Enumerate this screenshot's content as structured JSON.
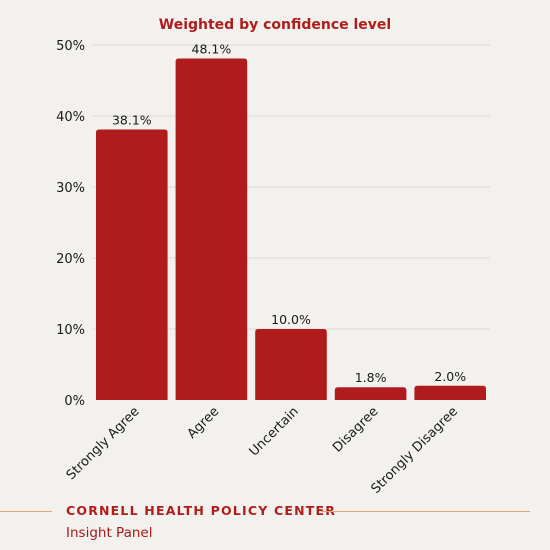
{
  "chart_data": {
    "type": "bar",
    "title": "Weighted by confidence level",
    "categories": [
      "Strongly Agree",
      "Agree",
      "Uncertain",
      "Disagree",
      "Strongly Disagree"
    ],
    "values": [
      38.1,
      48.1,
      10.0,
      1.8,
      2.0
    ],
    "data_labels": [
      "38.1%",
      "48.1%",
      "10.0%",
      "1.8%",
      "2.0%"
    ],
    "yticks": [
      0,
      10,
      20,
      30,
      40,
      50
    ],
    "ytick_labels": [
      "0%",
      "10%",
      "20%",
      "30%",
      "40%",
      "50%"
    ],
    "ylim": [
      0,
      50
    ],
    "grid": true,
    "legend": "none",
    "colors": {
      "bar": "#b01c1c",
      "title": "#b01c1c",
      "grid": "#dedbd6",
      "background": "#f3f1ee"
    }
  },
  "footer": {
    "org": "CORNELL HEALTH POLICY CENTER",
    "subtitle": "Insight Panel",
    "rule_color": "#e3a86e"
  }
}
